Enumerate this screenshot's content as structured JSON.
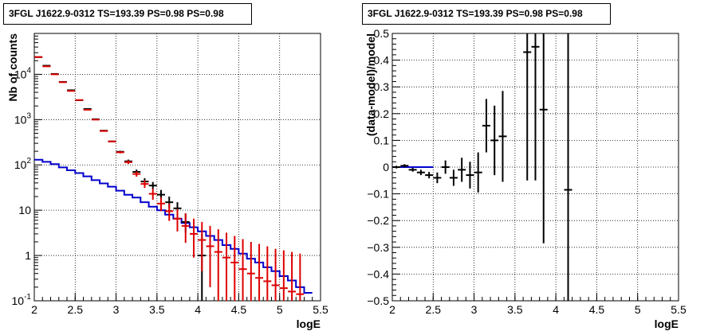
{
  "chart_data": [
    {
      "type": "scatter",
      "title": "3FGL J1622.9-0312 TS=193.39 PS=0.98 PS=0.98",
      "xlabel": "logE",
      "ylabel": "Nb of counts",
      "xlim": [
        2,
        5.5
      ],
      "ylim": [
        0.1,
        80000
      ],
      "yscale": "log",
      "grid": true,
      "xticks": [
        "2",
        "2.5",
        "3",
        "3.5",
        "4",
        "4.5",
        "5",
        "5.5"
      ],
      "yticks": [
        {
          "value": 0.1,
          "label": "10",
          "sup": "-1"
        },
        {
          "value": 1,
          "label": "1",
          "sup": ""
        },
        {
          "value": 10,
          "label": "10",
          "sup": ""
        },
        {
          "value": 100,
          "label": "10",
          "sup": "2"
        },
        {
          "value": 1000,
          "label": "10",
          "sup": "3"
        },
        {
          "value": 10000,
          "label": "10",
          "sup": "4"
        }
      ],
      "colors": {
        "data": "#000000",
        "model": "#dd0000",
        "model_line": "#0000cc"
      },
      "series": [
        {
          "kind": "data_counts",
          "x": [
            2.05,
            2.15,
            2.25,
            2.35,
            2.45,
            2.55,
            2.65,
            2.75,
            2.85,
            2.95,
            3.05,
            3.15,
            3.25,
            3.35,
            3.45,
            3.55,
            3.65,
            3.75,
            3.85,
            4.05
          ],
          "y": [
            24000,
            15500,
            10200,
            6800,
            4450,
            2680,
            1720,
            1020,
            570,
            330,
            195,
            120,
            70,
            43,
            35,
            22,
            15,
            11,
            5.5,
            1
          ],
          "ylow": [
            23800,
            15400,
            10100,
            6700,
            4400,
            2640,
            1700,
            1000,
            560,
            320,
            185,
            110,
            62,
            36,
            29,
            17,
            11,
            7.5,
            3.2,
            0.1
          ],
          "yhigh": [
            24200,
            15600,
            10300,
            6900,
            4500,
            2720,
            1740,
            1040,
            580,
            340,
            205,
            131,
            79,
            51,
            42,
            28,
            20,
            15,
            8.5,
            3
          ]
        },
        {
          "kind": "model_counts",
          "x": [
            2.05,
            2.15,
            2.25,
            2.35,
            2.45,
            2.55,
            2.65,
            2.75,
            2.85,
            2.95,
            3.05,
            3.15,
            3.25,
            3.35,
            3.45,
            3.55,
            3.65,
            3.75,
            3.85,
            3.95,
            4.05,
            4.15,
            4.25,
            4.35,
            4.45,
            4.55,
            4.65,
            4.75,
            4.85,
            4.95,
            5.05,
            5.15,
            5.25
          ],
          "y": [
            24000,
            15000,
            10000,
            6700,
            4300,
            2700,
            1650,
            1000,
            560,
            330,
            190,
            115,
            63,
            38,
            23,
            14,
            9.5,
            6.5,
            4.5,
            3,
            2.2,
            1.6,
            1.2,
            0.9,
            0.7,
            0.5,
            0.4,
            0.32,
            0.27,
            0.22,
            0.19,
            0.16,
            0.14
          ],
          "ylow": [
            23900,
            14900,
            9900,
            6650,
            4250,
            2650,
            1620,
            980,
            550,
            320,
            180,
            105,
            55,
            31,
            17,
            9.5,
            5.8,
            3.4,
            1.9,
            0.9,
            0.45,
            0.2,
            0.1,
            0.1,
            0.1,
            0.1,
            0.1,
            0.1,
            0.1,
            0.1,
            0.1,
            0.1,
            0.1
          ],
          "yhigh": [
            24100,
            15100,
            10100,
            6750,
            4350,
            2750,
            1680,
            1020,
            570,
            340,
            200,
            125,
            72,
            46,
            30,
            19,
            14,
            10.5,
            8.5,
            6.5,
            5.5,
            4.5,
            3.8,
            3.2,
            2.7,
            2.3,
            2,
            1.8,
            1.6,
            1.4,
            1.3,
            1.2,
            1.1
          ]
        },
        {
          "kind": "model_step",
          "edges": [
            2.0,
            2.1,
            2.2,
            2.3,
            2.4,
            2.5,
            2.6,
            2.7,
            2.8,
            2.9,
            3.0,
            3.1,
            3.2,
            3.3,
            3.4,
            3.5,
            3.6,
            3.7,
            3.8,
            3.9,
            4.0,
            4.1,
            4.2,
            4.3,
            4.4,
            4.5,
            4.6,
            4.7,
            4.8,
            4.9,
            5.0,
            5.1,
            5.2,
            5.3,
            5.4
          ],
          "y": [
            130,
            117,
            104,
            88,
            76,
            66,
            56,
            46,
            39,
            33,
            27,
            22,
            19,
            15,
            12,
            10,
            8,
            6.5,
            5.2,
            4.2,
            3.4,
            2.7,
            2.2,
            1.7,
            1.4,
            1.1,
            0.85,
            0.7,
            0.55,
            0.45,
            0.35,
            0.28,
            0.2,
            0.15
          ]
        }
      ]
    },
    {
      "type": "scatter",
      "title": "3FGL J1622.9-0312 TS=193.39 PS=0.98 PS=0.98",
      "xlabel": "logE",
      "ylabel": "(data-model)/model",
      "xlim": [
        2,
        5.5
      ],
      "ylim": [
        -0.5,
        0.5
      ],
      "grid": true,
      "xticks": [
        "2",
        "2.5",
        "3",
        "3.5",
        "4",
        "4.5",
        "5",
        "5.5"
      ],
      "yticks": [
        "−0.5",
        "−0.4",
        "−0.3",
        "−0.2",
        "−0.1",
        "0",
        "0.1",
        "0.2",
        "0.3",
        "0.4",
        "0.5"
      ],
      "colors": {
        "data": "#000000",
        "zero_line": "#0000cc"
      },
      "series": [
        {
          "kind": "residuals",
          "x": [
            2.05,
            2.15,
            2.25,
            2.35,
            2.45,
            2.55,
            2.65,
            2.75,
            2.85,
            2.95,
            3.05,
            3.15,
            3.25,
            3.35,
            3.65,
            3.75,
            3.85,
            4.15
          ],
          "y": [
            0.0,
            0.005,
            -0.01,
            -0.02,
            -0.03,
            -0.04,
            0.0,
            -0.04,
            -0.01,
            -0.03,
            -0.02,
            0.155,
            0.1,
            0.115,
            0.43,
            0.45,
            0.215,
            -0.085
          ],
          "yerr": [
            0.005,
            0.006,
            0.007,
            0.01,
            0.012,
            0.02,
            0.025,
            0.03,
            0.045,
            0.05,
            0.075,
            0.1,
            0.13,
            0.17,
            0.48,
            0.5,
            0.5,
            0.65
          ]
        }
      ]
    }
  ]
}
